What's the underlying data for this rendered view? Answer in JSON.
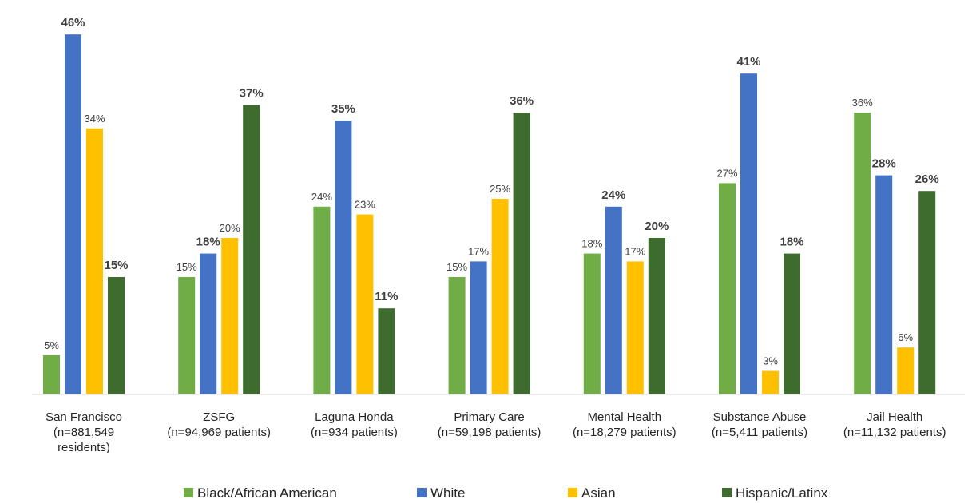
{
  "chart_data": {
    "type": "bar",
    "title": "",
    "xlabel": "",
    "ylabel": "",
    "ylim": [
      0,
      50
    ],
    "grid": false,
    "legend_position": "bottom",
    "categories": [
      [
        "San Francisco",
        "(n=881,549",
        "residents)"
      ],
      [
        "ZSFG",
        "(n=94,969 patients)"
      ],
      [
        "Laguna Honda",
        "(n=934 patients)"
      ],
      [
        "Primary Care",
        "(n=59,198 patients)"
      ],
      [
        "Mental Health",
        "(n=18,279 patients)"
      ],
      [
        "Substance Abuse",
        "(n=5,411 patients)"
      ],
      [
        "Jail Health",
        "(n=11,132 patients)"
      ]
    ],
    "series": [
      {
        "name": "Black/African American",
        "color": "#70AD47",
        "values": [
          5,
          15,
          24,
          15,
          18,
          27,
          36
        ],
        "labels": [
          "5%",
          "15%",
          "24%",
          "15%",
          "18%",
          "27%",
          "36%"
        ]
      },
      {
        "name": "White",
        "color": "#4472C4",
        "values": [
          46,
          18,
          35,
          17,
          24,
          41,
          28
        ],
        "labels": [
          "46%",
          "18%",
          "35%",
          "17%",
          "24%",
          "41%",
          "28%"
        ]
      },
      {
        "name": "Asian",
        "color": "#FFC000",
        "values": [
          34,
          20,
          23,
          25,
          17,
          3,
          6
        ],
        "labels": [
          "34%",
          "20%",
          "23%",
          "25%",
          "17%",
          "3%",
          "6%"
        ]
      },
      {
        "name": "Hispanic/Latinx",
        "color": "#3E6B2E",
        "values": [
          15,
          37,
          11,
          36,
          20,
          18,
          26
        ],
        "labels": [
          "15%",
          "37%",
          "11%",
          "36%",
          "20%",
          "18%",
          "26%"
        ]
      }
    ]
  }
}
